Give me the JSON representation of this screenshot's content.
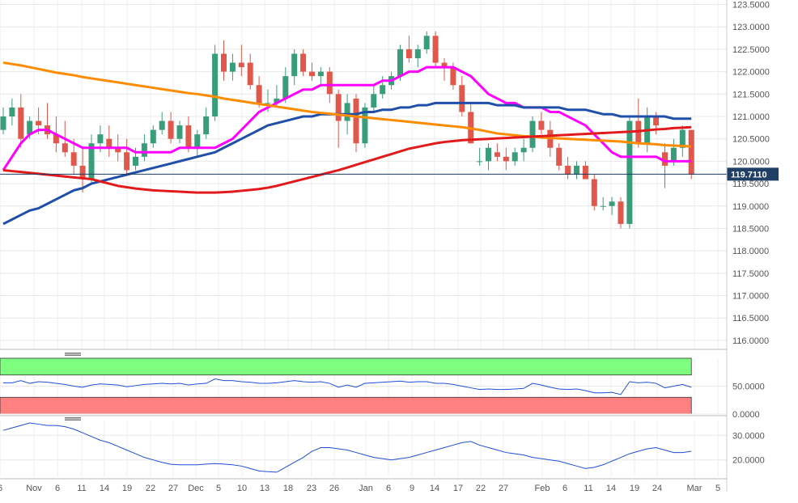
{
  "chart_data": [
    {
      "type": "candlestick",
      "panel": "price",
      "title": "",
      "ylim": [
        115.8,
        123.6
      ],
      "y_ticks": [
        "123.5000",
        "123.0000",
        "122.5000",
        "122.0000",
        "121.5000",
        "121.0000",
        "120.5000",
        "120.0000",
        "119.5000",
        "119.0000",
        "118.5000",
        "118.0000",
        "117.5000",
        "117.0000",
        "116.5000",
        "116.0000"
      ],
      "last_price": "119.7110",
      "x_tick_labels": [
        "6",
        "Nov",
        "6",
        "11",
        "14",
        "19",
        "22",
        "27",
        "Dec",
        "5",
        "10",
        "13",
        "18",
        "23",
        "26",
        "Jan",
        "6",
        "9",
        "14",
        "17",
        "22",
        "27",
        "Feb",
        "6",
        "11",
        "14",
        "19",
        "24",
        "Mar",
        "5"
      ],
      "candles": [
        [
          120.7,
          121.2,
          120.6,
          121.0
        ],
        [
          121.0,
          121.4,
          120.8,
          121.2
        ],
        [
          121.2,
          121.5,
          120.3,
          120.5
        ],
        [
          120.6,
          121.0,
          120.5,
          120.9
        ],
        [
          120.9,
          121.2,
          120.6,
          120.8
        ],
        [
          120.8,
          121.3,
          120.5,
          120.6
        ],
        [
          120.6,
          121.0,
          120.2,
          120.4
        ],
        [
          120.4,
          120.9,
          120.1,
          120.2
        ],
        [
          120.2,
          120.5,
          119.7,
          119.9
        ],
        [
          119.9,
          120.3,
          119.3,
          119.6
        ],
        [
          119.6,
          120.6,
          119.5,
          120.4
        ],
        [
          120.4,
          120.8,
          120.2,
          120.6
        ],
        [
          120.5,
          120.8,
          120.1,
          120.3
        ],
        [
          120.3,
          120.6,
          120.0,
          120.2
        ],
        [
          120.2,
          120.5,
          119.7,
          119.8
        ],
        [
          119.9,
          120.3,
          119.8,
          120.1
        ],
        [
          120.1,
          120.6,
          120.0,
          120.4
        ],
        [
          120.4,
          120.8,
          120.3,
          120.7
        ],
        [
          120.7,
          121.1,
          120.6,
          120.9
        ],
        [
          120.9,
          121.1,
          120.4,
          120.5
        ],
        [
          120.5,
          120.9,
          120.4,
          120.8
        ],
        [
          120.8,
          121.0,
          120.2,
          120.3
        ],
        [
          120.3,
          120.7,
          120.1,
          120.6
        ],
        [
          120.6,
          121.2,
          120.5,
          121.0
        ],
        [
          121.0,
          122.6,
          120.9,
          122.4
        ],
        [
          122.4,
          122.7,
          121.8,
          122.0
        ],
        [
          122.0,
          122.4,
          121.8,
          122.2
        ],
        [
          122.2,
          122.6,
          121.9,
          122.1
        ],
        [
          122.2,
          122.4,
          121.6,
          121.7
        ],
        [
          121.7,
          121.9,
          121.2,
          121.3
        ],
        [
          121.3,
          121.6,
          121.1,
          121.3
        ],
        [
          121.3,
          121.7,
          121.2,
          121.4
        ],
        [
          121.4,
          122.1,
          121.3,
          121.9
        ],
        [
          121.9,
          122.5,
          121.7,
          122.4
        ],
        [
          122.4,
          122.5,
          121.9,
          122.0
        ],
        [
          122.0,
          122.2,
          121.8,
          121.9
        ],
        [
          121.9,
          122.1,
          121.7,
          122.0
        ],
        [
          122.0,
          122.1,
          121.3,
          121.5
        ],
        [
          121.5,
          121.6,
          120.3,
          120.9
        ],
        [
          120.9,
          121.5,
          120.6,
          121.3
        ],
        [
          121.4,
          121.5,
          120.2,
          120.4
        ],
        [
          120.4,
          121.3,
          120.3,
          121.2
        ],
        [
          121.2,
          121.7,
          121.1,
          121.5
        ],
        [
          121.5,
          121.9,
          121.4,
          121.7
        ],
        [
          121.7,
          122.0,
          121.6,
          121.9
        ],
        [
          121.9,
          122.6,
          121.8,
          122.5
        ],
        [
          122.5,
          122.8,
          122.2,
          122.3
        ],
        [
          122.3,
          122.6,
          122.1,
          122.5
        ],
        [
          122.5,
          122.9,
          122.4,
          122.8
        ],
        [
          122.8,
          122.9,
          122.1,
          122.2
        ],
        [
          122.2,
          122.3,
          121.8,
          122.1
        ],
        [
          122.1,
          122.2,
          121.6,
          121.7
        ],
        [
          121.7,
          121.9,
          121.0,
          121.1
        ],
        [
          121.1,
          121.3,
          120.4,
          120.4
        ],
        [
          120.0,
          120.3,
          119.9,
          120.0
        ],
        [
          120.0,
          120.4,
          119.8,
          120.3
        ],
        [
          120.2,
          120.4,
          120.0,
          120.1
        ],
        [
          120.1,
          120.3,
          119.8,
          120.0
        ],
        [
          120.0,
          120.3,
          119.9,
          120.2
        ],
        [
          120.2,
          120.5,
          120.0,
          120.3
        ],
        [
          120.3,
          121.0,
          120.2,
          120.9
        ],
        [
          120.9,
          121.1,
          120.6,
          120.7
        ],
        [
          120.7,
          120.9,
          120.1,
          120.3
        ],
        [
          120.3,
          120.4,
          119.8,
          119.9
        ],
        [
          119.9,
          120.1,
          119.6,
          119.7
        ],
        [
          119.7,
          120.0,
          119.6,
          119.9
        ],
        [
          119.9,
          120.0,
          119.6,
          119.6
        ],
        [
          119.6,
          119.7,
          118.9,
          119.0
        ],
        [
          119.0,
          119.2,
          118.9,
          119.0
        ],
        [
          119.0,
          119.2,
          118.8,
          119.1
        ],
        [
          119.1,
          119.2,
          118.5,
          118.6
        ],
        [
          118.6,
          121.0,
          118.5,
          120.9
        ],
        [
          120.9,
          121.4,
          120.3,
          120.4
        ],
        [
          120.4,
          121.2,
          120.2,
          121.0
        ],
        [
          121.0,
          121.1,
          120.6,
          120.8
        ],
        [
          120.2,
          120.4,
          119.4,
          119.9
        ],
        [
          120.0,
          120.5,
          119.9,
          120.3
        ],
        [
          120.3,
          120.8,
          120.1,
          120.7
        ],
        [
          120.7,
          120.7,
          119.6,
          119.7
        ]
      ],
      "series": [
        {
          "name": "",
          "color": "#ff00ff",
          "values": [
            119.8,
            120.1,
            120.4,
            120.6,
            120.7,
            120.7,
            120.6,
            120.5,
            120.4,
            120.3,
            120.3,
            120.3,
            120.3,
            120.3,
            120.3,
            120.2,
            120.2,
            120.2,
            120.2,
            120.2,
            120.3,
            120.3,
            120.3,
            120.3,
            120.3,
            120.4,
            120.5,
            120.7,
            120.9,
            121.1,
            121.2,
            121.3,
            121.4,
            121.5,
            121.6,
            121.6,
            121.7,
            121.7,
            121.7,
            121.7,
            121.7,
            121.7,
            121.7,
            121.8,
            121.8,
            121.9,
            122.0,
            122.0,
            122.1,
            122.1,
            122.1,
            122.1,
            122.0,
            121.9,
            121.7,
            121.5,
            121.4,
            121.3,
            121.3,
            121.2,
            121.2,
            121.2,
            121.1,
            121.1,
            121.0,
            120.9,
            120.8,
            120.6,
            120.4,
            120.2,
            120.1,
            120.1,
            120.1,
            120.1,
            120.1,
            120.0,
            120.0,
            120.0,
            120.0
          ]
        },
        {
          "name": "",
          "color": "#1f4fa8",
          "values": [
            118.6,
            118.7,
            118.8,
            118.9,
            118.95,
            119.05,
            119.15,
            119.25,
            119.35,
            119.4,
            119.5,
            119.55,
            119.6,
            119.65,
            119.7,
            119.75,
            119.8,
            119.85,
            119.9,
            119.95,
            120.0,
            120.05,
            120.1,
            120.15,
            120.2,
            120.3,
            120.4,
            120.5,
            120.6,
            120.7,
            120.8,
            120.85,
            120.9,
            120.95,
            121.0,
            121.0,
            121.05,
            121.05,
            121.05,
            121.05,
            121.05,
            121.1,
            121.1,
            121.15,
            121.15,
            121.2,
            121.2,
            121.25,
            121.25,
            121.3,
            121.3,
            121.3,
            121.3,
            121.3,
            121.3,
            121.3,
            121.25,
            121.25,
            121.25,
            121.2,
            121.2,
            121.2,
            121.2,
            121.2,
            121.15,
            121.15,
            121.15,
            121.1,
            121.05,
            121.05,
            121.0,
            121.0,
            121.0,
            121.0,
            121.0,
            121.0,
            120.95,
            120.95,
            120.95
          ]
        },
        {
          "name": "",
          "color": "#ff8c00",
          "values": [
            122.2,
            122.17,
            122.14,
            122.1,
            122.06,
            122.02,
            121.98,
            121.95,
            121.92,
            121.88,
            121.85,
            121.82,
            121.79,
            121.76,
            121.73,
            121.7,
            121.67,
            121.64,
            121.61,
            121.58,
            121.55,
            121.52,
            121.5,
            121.47,
            121.44,
            121.4,
            121.37,
            121.34,
            121.31,
            121.28,
            121.25,
            121.22,
            121.19,
            121.16,
            121.13,
            121.1,
            121.08,
            121.06,
            121.04,
            121.02,
            121.0,
            120.98,
            120.96,
            120.94,
            120.92,
            120.9,
            120.88,
            120.86,
            120.84,
            120.82,
            120.8,
            120.78,
            120.76,
            120.73,
            120.7,
            120.66,
            120.62,
            120.6,
            120.58,
            120.56,
            120.55,
            120.53,
            120.52,
            120.51,
            120.5,
            120.49,
            120.48,
            120.47,
            120.46,
            120.45,
            120.44,
            120.42,
            120.4,
            120.39,
            120.38,
            120.36,
            120.35,
            120.34,
            120.33
          ]
        },
        {
          "name": "",
          "color": "#e31a1c",
          "values": [
            119.8,
            119.78,
            119.76,
            119.74,
            119.72,
            119.7,
            119.68,
            119.66,
            119.64,
            119.62,
            119.6,
            119.55,
            119.5,
            119.45,
            119.42,
            119.39,
            119.37,
            119.35,
            119.34,
            119.33,
            119.32,
            119.31,
            119.3,
            119.3,
            119.3,
            119.31,
            119.32,
            119.34,
            119.36,
            119.38,
            119.41,
            119.45,
            119.5,
            119.55,
            119.6,
            119.65,
            119.7,
            119.75,
            119.8,
            119.86,
            119.92,
            119.98,
            120.04,
            120.1,
            120.16,
            120.22,
            120.28,
            120.32,
            120.36,
            120.4,
            120.43,
            120.45,
            120.47,
            120.48,
            120.49,
            120.5,
            120.51,
            120.52,
            120.53,
            120.54,
            120.55,
            120.56,
            120.57,
            120.58,
            120.59,
            120.6,
            120.61,
            120.62,
            120.63,
            120.64,
            120.65,
            120.66,
            120.67,
            120.69,
            120.71,
            120.72,
            120.74,
            120.75,
            120.76
          ]
        }
      ]
    },
    {
      "type": "line",
      "panel": "oscillator_1",
      "ylim": [
        0,
        100
      ],
      "y_ticks": [
        "50.0000",
        "0.0000"
      ],
      "bands": [
        {
          "color": "#7fff7f",
          "from": 70,
          "to": 100
        },
        {
          "color": "#ff8080",
          "from": 0,
          "to": 30
        }
      ],
      "series": [
        {
          "name": "",
          "color": "#1f4fd8",
          "values": [
            56,
            56,
            60,
            55,
            58,
            57,
            55,
            53,
            50,
            48,
            52,
            54,
            53,
            52,
            49,
            51,
            53,
            54,
            55,
            54,
            55,
            52,
            54,
            55,
            63,
            60,
            60,
            58,
            57,
            55,
            55,
            56,
            58,
            60,
            58,
            57,
            58,
            55,
            48,
            52,
            48,
            55,
            56,
            57,
            58,
            59,
            57,
            58,
            58,
            55,
            55,
            53,
            50,
            47,
            44,
            45,
            44,
            44,
            45,
            46,
            55,
            52,
            48,
            45,
            44,
            45,
            42,
            38,
            38,
            39,
            35,
            58,
            56,
            57,
            55,
            47,
            50,
            53,
            48
          ]
        }
      ]
    },
    {
      "type": "line",
      "panel": "oscillator_2",
      "ylim": [
        13,
        36
      ],
      "y_ticks": [
        "30.0000",
        "20.0000"
      ],
      "series": [
        {
          "name": "",
          "color": "#1f4fd8",
          "values": [
            32,
            33,
            34,
            35,
            34.5,
            34,
            34,
            33.5,
            32.5,
            31,
            29.5,
            28,
            27,
            25.5,
            24,
            22.5,
            21,
            20,
            19,
            18.2,
            18,
            18,
            18,
            18.3,
            18.5,
            18.3,
            18,
            17.5,
            16.5,
            15.5,
            15.2,
            15,
            17,
            19,
            21,
            23.5,
            25,
            25,
            24.5,
            24,
            23,
            22,
            21,
            20.5,
            20,
            20.5,
            21,
            22,
            23,
            24,
            25,
            26,
            27,
            27.5,
            26,
            25,
            24,
            23,
            22.5,
            22,
            21,
            20.5,
            20,
            19.5,
            18.5,
            17.5,
            16.5,
            17,
            18,
            19.5,
            21,
            22.5,
            23.5,
            24.5,
            25,
            24,
            23,
            23,
            23.5
          ]
        }
      ]
    }
  ]
}
